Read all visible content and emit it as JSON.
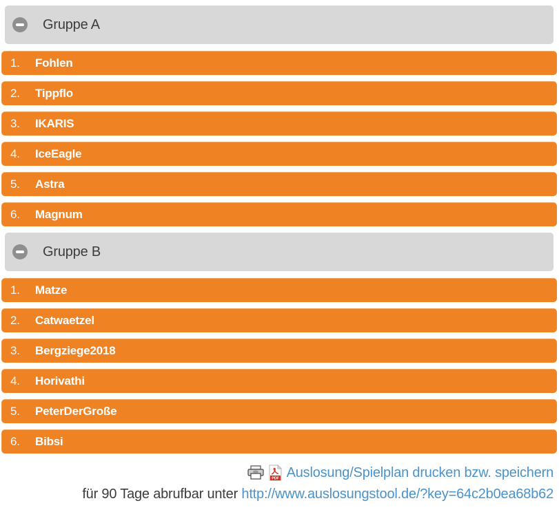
{
  "groups": [
    {
      "label": "Gruppe A",
      "teams": [
        {
          "num": "1.",
          "name": "Fohlen"
        },
        {
          "num": "2.",
          "name": "Tippflo"
        },
        {
          "num": "3.",
          "name": "IKARIS"
        },
        {
          "num": "4.",
          "name": "IceEagle"
        },
        {
          "num": "5.",
          "name": "Astra"
        },
        {
          "num": "6.",
          "name": "Magnum"
        }
      ]
    },
    {
      "label": "Gruppe B",
      "teams": [
        {
          "num": "1.",
          "name": "Matze"
        },
        {
          "num": "2.",
          "name": "Catwaetzel"
        },
        {
          "num": "3.",
          "name": "Bergziege2018"
        },
        {
          "num": "4.",
          "name": "Horivathi"
        },
        {
          "num": "5.",
          "name": "PeterDerGroße"
        },
        {
          "num": "6.",
          "name": "Bibsi"
        }
      ]
    }
  ],
  "footer": {
    "print_link": "Auslosung/Spielplan drucken bzw. speichern",
    "availability_text": "für 90 Tage abrufbar unter ",
    "url": "http://www.auslosungstool.de/?key=64c2b0ea68b62",
    "pdf_badge": "PDF"
  },
  "icons": {
    "collapse": "minus-circle-icon",
    "printer": "printer-icon",
    "pdf": "pdf-file-icon"
  },
  "colors": {
    "row_orange": "#ef8222",
    "header_gray": "#d8d8d8",
    "icon_circle_gray": "#8f8f8f",
    "text_dark": "#3c3c3c",
    "link_blue": "#4a93c9",
    "pdf_red": "#d42b1e"
  }
}
